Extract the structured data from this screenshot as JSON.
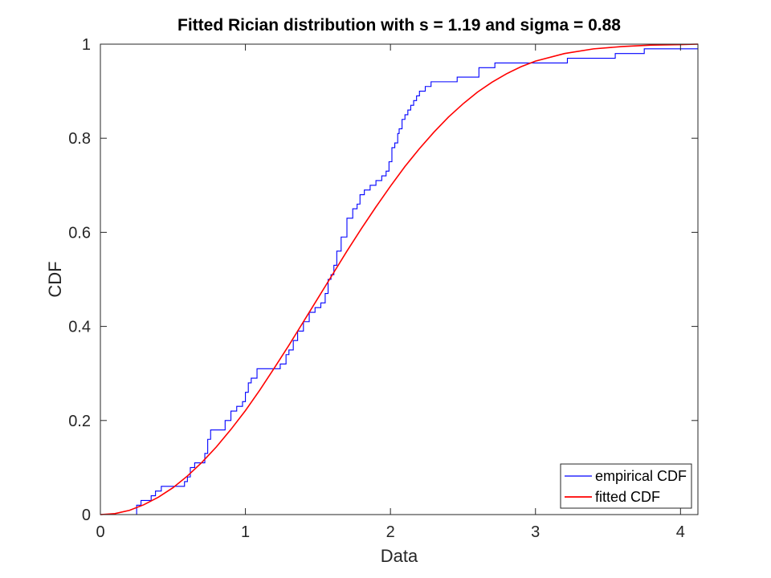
{
  "chart_data": {
    "type": "line",
    "title": "Fitted Rician distribution with s = 1.19 and sigma = 0.88",
    "xlabel": "Data",
    "ylabel": "CDF",
    "xlim": [
      0,
      4.12
    ],
    "ylim": [
      0,
      1
    ],
    "x_ticks": [
      "0",
      "1",
      "2",
      "3",
      "4"
    ],
    "y_ticks": [
      "0",
      "0.2",
      "0.4",
      "0.6",
      "0.8",
      "1"
    ],
    "grid": false,
    "legend_position": "bottom-right",
    "series": [
      {
        "name": "empirical CDF",
        "color": "#0000ff",
        "style": "stairs",
        "x": [
          0,
          0.25,
          0.28,
          0.35,
          0.38,
          0.42,
          0.58,
          0.6,
          0.62,
          0.65,
          0.72,
          0.74,
          0.76,
          0.8,
          0.86,
          0.9,
          0.94,
          0.98,
          1.0,
          1.02,
          1.04,
          1.08,
          1.12,
          1.24,
          1.28,
          1.3,
          1.33,
          1.36,
          1.4,
          1.44,
          1.48,
          1.52,
          1.55,
          1.57,
          1.59,
          1.61,
          1.63,
          1.66,
          1.7,
          1.74,
          1.77,
          1.79,
          1.82,
          1.86,
          1.9,
          1.94,
          1.97,
          1.99,
          2.01,
          2.03,
          2.05,
          2.06,
          2.08,
          2.1,
          2.12,
          2.14,
          2.16,
          2.18,
          2.2,
          2.22,
          2.24,
          2.26,
          2.28,
          2.31,
          2.46,
          2.61,
          2.72,
          3.22,
          3.55,
          3.75,
          4.12
        ],
        "y": [
          0,
          0.02,
          0.03,
          0.04,
          0.05,
          0.06,
          0.07,
          0.08,
          0.1,
          0.11,
          0.13,
          0.16,
          0.18,
          0.18,
          0.2,
          0.22,
          0.23,
          0.24,
          0.26,
          0.28,
          0.29,
          0.31,
          0.31,
          0.32,
          0.34,
          0.35,
          0.37,
          0.39,
          0.41,
          0.43,
          0.44,
          0.45,
          0.47,
          0.5,
          0.51,
          0.53,
          0.56,
          0.59,
          0.63,
          0.65,
          0.66,
          0.68,
          0.69,
          0.7,
          0.71,
          0.72,
          0.73,
          0.75,
          0.78,
          0.79,
          0.81,
          0.82,
          0.84,
          0.85,
          0.86,
          0.87,
          0.88,
          0.89,
          0.9,
          0.9,
          0.91,
          0.91,
          0.92,
          0.92,
          0.93,
          0.95,
          0.96,
          0.97,
          0.98,
          0.99,
          0.99
        ]
      },
      {
        "name": "fitted CDF",
        "color": "#ff0000",
        "style": "smooth",
        "x": [
          0,
          0.1,
          0.2,
          0.3,
          0.4,
          0.5,
          0.6,
          0.7,
          0.8,
          0.9,
          1.0,
          1.1,
          1.2,
          1.3,
          1.4,
          1.5,
          1.6,
          1.7,
          1.8,
          1.9,
          2.0,
          2.1,
          2.2,
          2.3,
          2.4,
          2.5,
          2.6,
          2.7,
          2.8,
          2.9,
          3.0,
          3.2,
          3.4,
          3.6,
          3.8,
          4.0,
          4.12
        ],
        "y": [
          0,
          0.002,
          0.009,
          0.021,
          0.037,
          0.057,
          0.082,
          0.111,
          0.144,
          0.181,
          0.221,
          0.265,
          0.312,
          0.36,
          0.41,
          0.46,
          0.51,
          0.56,
          0.608,
          0.654,
          0.698,
          0.74,
          0.778,
          0.813,
          0.845,
          0.873,
          0.898,
          0.919,
          0.937,
          0.952,
          0.964,
          0.98,
          0.99,
          0.995,
          0.998,
          0.999,
          1.0
        ]
      }
    ]
  }
}
